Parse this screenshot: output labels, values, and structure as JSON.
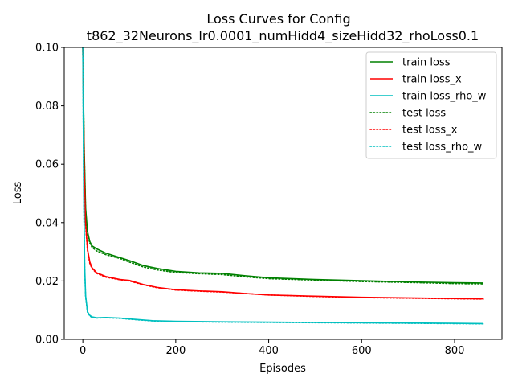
{
  "chart_data": {
    "type": "line",
    "title": "Loss Curves for Config",
    "subtitle": "t862_32Neurons_lr0.0001_numHidd4_sizeHidd32_rhoLoss0.1",
    "xlabel": "Episodes",
    "ylabel": "Loss",
    "xlim": [
      -40,
      902
    ],
    "ylim": [
      0,
      0.1
    ],
    "x_ticks": [
      0,
      200,
      400,
      600,
      800
    ],
    "y_ticks": [
      0.0,
      0.02,
      0.04,
      0.06,
      0.08,
      0.1
    ],
    "x_tick_labels": [
      "0",
      "200",
      "400",
      "600",
      "800"
    ],
    "y_tick_labels": [
      "0.00",
      "0.02",
      "0.04",
      "0.06",
      "0.08",
      "0.10"
    ],
    "grid": false,
    "legend_position": "top-right",
    "series": [
      {
        "name": "train loss",
        "color": "#008000",
        "style": "solid",
        "points": [
          [
            0,
            0.1
          ],
          [
            3,
            0.065
          ],
          [
            6,
            0.045
          ],
          [
            10,
            0.037
          ],
          [
            15,
            0.0335
          ],
          [
            20,
            0.032
          ],
          [
            30,
            0.031
          ],
          [
            50,
            0.0295
          ],
          [
            80,
            0.028
          ],
          [
            100,
            0.027
          ],
          [
            130,
            0.0253
          ],
          [
            160,
            0.0243
          ],
          [
            200,
            0.0233
          ],
          [
            250,
            0.0228
          ],
          [
            300,
            0.0226
          ],
          [
            350,
            0.0218
          ],
          [
            400,
            0.0211
          ],
          [
            500,
            0.0205
          ],
          [
            600,
            0.0201
          ],
          [
            700,
            0.0197
          ],
          [
            800,
            0.0194
          ],
          [
            862,
            0.0193
          ]
        ]
      },
      {
        "name": "train loss_x",
        "color": "#ff0000",
        "style": "solid",
        "points": [
          [
            0,
            0.1
          ],
          [
            3,
            0.06
          ],
          [
            6,
            0.04
          ],
          [
            10,
            0.031
          ],
          [
            15,
            0.0265
          ],
          [
            20,
            0.0245
          ],
          [
            30,
            0.0228
          ],
          [
            50,
            0.0215
          ],
          [
            80,
            0.0205
          ],
          [
            100,
            0.0202
          ],
          [
            130,
            0.0188
          ],
          [
            160,
            0.0178
          ],
          [
            200,
            0.017
          ],
          [
            250,
            0.0166
          ],
          [
            300,
            0.0163
          ],
          [
            350,
            0.0157
          ],
          [
            400,
            0.0152
          ],
          [
            500,
            0.0148
          ],
          [
            600,
            0.0144
          ],
          [
            700,
            0.0142
          ],
          [
            800,
            0.014
          ],
          [
            862,
            0.0139
          ]
        ]
      },
      {
        "name": "train loss_rho_w",
        "color": "#00bfbf",
        "style": "solid",
        "points": [
          [
            0,
            0.1
          ],
          [
            2,
            0.05
          ],
          [
            4,
            0.025
          ],
          [
            6,
            0.015
          ],
          [
            10,
            0.0095
          ],
          [
            15,
            0.0082
          ],
          [
            20,
            0.0077
          ],
          [
            30,
            0.0074
          ],
          [
            50,
            0.0075
          ],
          [
            80,
            0.0073
          ],
          [
            100,
            0.007
          ],
          [
            150,
            0.0064
          ],
          [
            200,
            0.0062
          ],
          [
            300,
            0.006
          ],
          [
            400,
            0.0059
          ],
          [
            500,
            0.0058
          ],
          [
            600,
            0.0057
          ],
          [
            700,
            0.0056
          ],
          [
            800,
            0.0055
          ],
          [
            862,
            0.0054
          ]
        ]
      },
      {
        "name": "test loss",
        "color": "#008000",
        "style": "dotted",
        "points": [
          [
            0,
            0.1
          ],
          [
            3,
            0.064
          ],
          [
            6,
            0.044
          ],
          [
            10,
            0.036
          ],
          [
            15,
            0.033
          ],
          [
            20,
            0.0315
          ],
          [
            30,
            0.0303
          ],
          [
            50,
            0.029
          ],
          [
            80,
            0.0277
          ],
          [
            100,
            0.0265
          ],
          [
            130,
            0.0248
          ],
          [
            160,
            0.0238
          ],
          [
            200,
            0.0229
          ],
          [
            250,
            0.0225
          ],
          [
            300,
            0.0222
          ],
          [
            350,
            0.0214
          ],
          [
            400,
            0.0208
          ],
          [
            500,
            0.0203
          ],
          [
            600,
            0.0198
          ],
          [
            700,
            0.0195
          ],
          [
            800,
            0.0191
          ],
          [
            862,
            0.019
          ]
        ]
      },
      {
        "name": "test loss_x",
        "color": "#ff0000",
        "style": "dotted",
        "points": [
          [
            0,
            0.1
          ],
          [
            3,
            0.059
          ],
          [
            6,
            0.039
          ],
          [
            10,
            0.0305
          ],
          [
            15,
            0.026
          ],
          [
            20,
            0.0242
          ],
          [
            30,
            0.0226
          ],
          [
            50,
            0.0213
          ],
          [
            80,
            0.0204
          ],
          [
            100,
            0.02
          ],
          [
            130,
            0.0187
          ],
          [
            160,
            0.0177
          ],
          [
            200,
            0.0169
          ],
          [
            250,
            0.0165
          ],
          [
            300,
            0.0162
          ],
          [
            350,
            0.0157
          ],
          [
            400,
            0.0152
          ],
          [
            500,
            0.0147
          ],
          [
            600,
            0.0143
          ],
          [
            700,
            0.0141
          ],
          [
            800,
            0.0139
          ],
          [
            862,
            0.0138
          ]
        ]
      },
      {
        "name": "test loss_rho_w",
        "color": "#00bfbf",
        "style": "dotted",
        "points": [
          [
            0,
            0.1
          ],
          [
            2,
            0.048
          ],
          [
            4,
            0.024
          ],
          [
            6,
            0.0145
          ],
          [
            10,
            0.0092
          ],
          [
            15,
            0.008
          ],
          [
            20,
            0.0075
          ],
          [
            30,
            0.0073
          ],
          [
            50,
            0.0074
          ],
          [
            80,
            0.0072
          ],
          [
            100,
            0.0069
          ],
          [
            150,
            0.0063
          ],
          [
            200,
            0.0061
          ],
          [
            300,
            0.0059
          ],
          [
            400,
            0.0058
          ],
          [
            500,
            0.0057
          ],
          [
            600,
            0.0056
          ],
          [
            700,
            0.0055
          ],
          [
            800,
            0.0054
          ],
          [
            862,
            0.0053
          ]
        ]
      }
    ]
  }
}
